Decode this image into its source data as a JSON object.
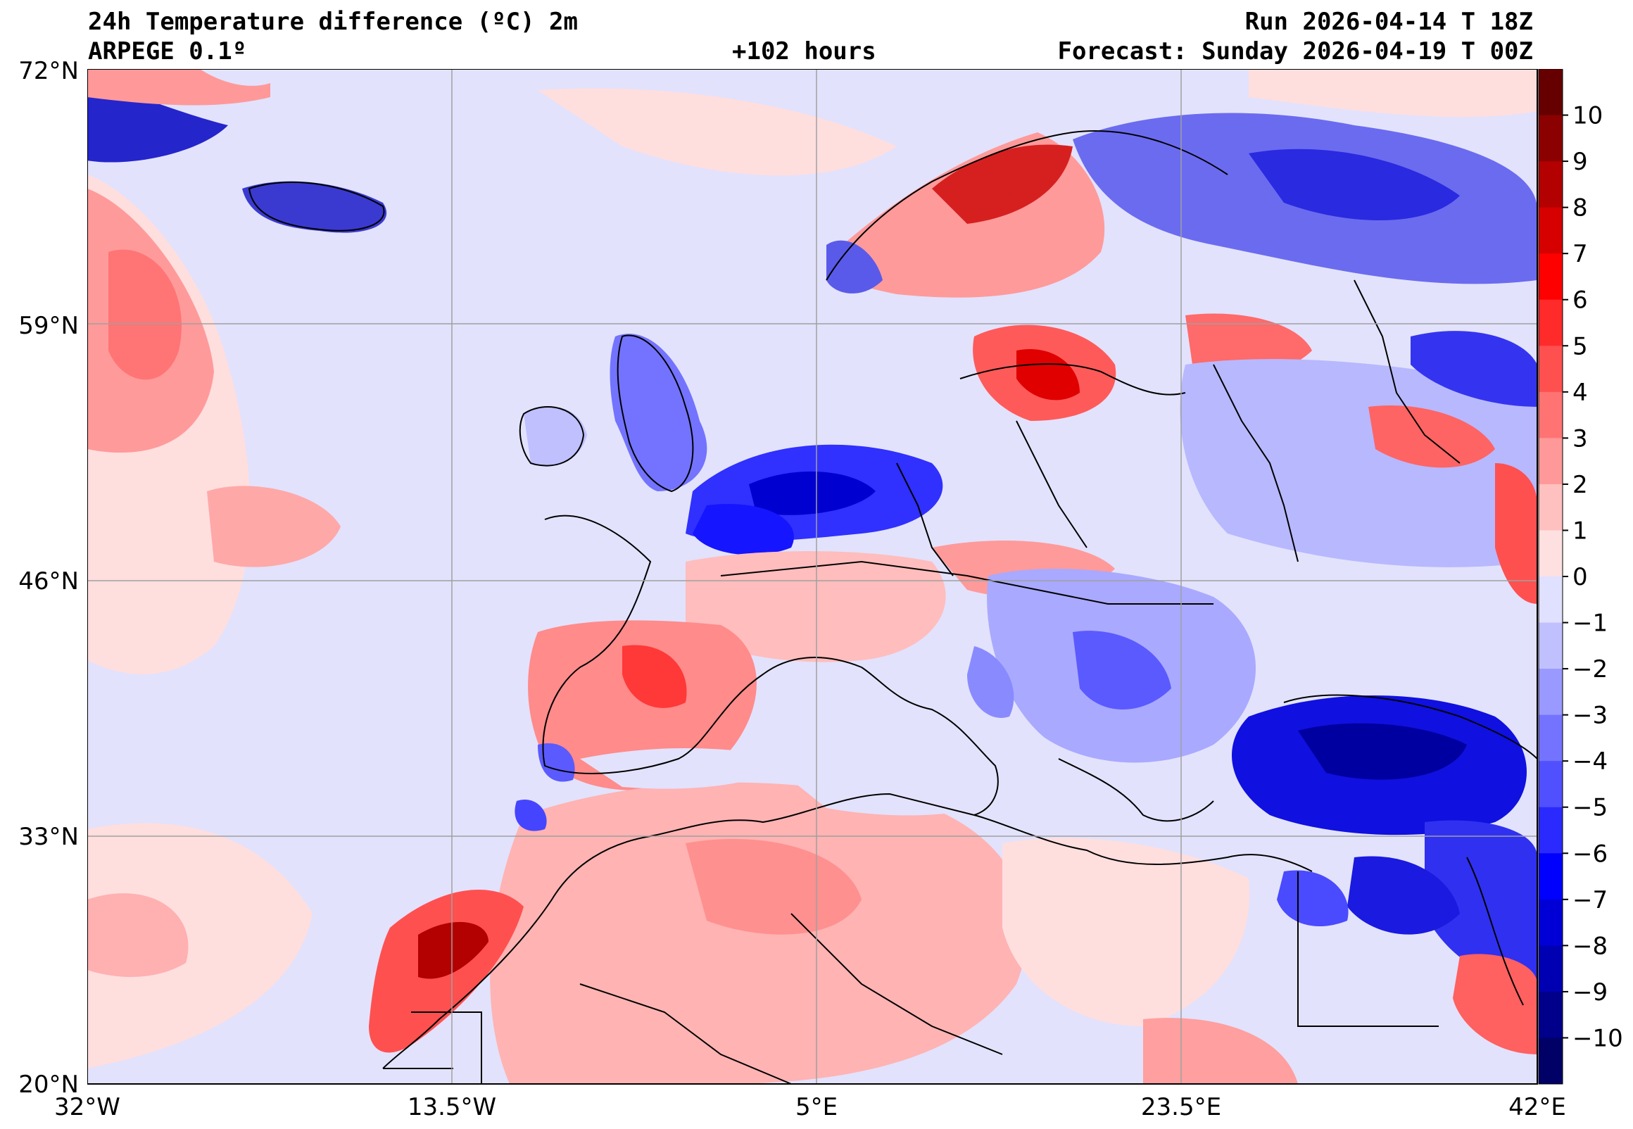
{
  "title": {
    "main": "24h Temperature difference (ºC) 2m",
    "model": "ARPEGE 0.1º",
    "lead": "+102 hours",
    "run": "Run 2026-04-14 T 18Z",
    "forecast": "Forecast: Sunday 2026-04-19 T 00Z"
  },
  "axes": {
    "lat_labels": [
      "72°N",
      "59°N",
      "46°N",
      "33°N",
      "20°N"
    ],
    "lon_labels": [
      "32°W",
      "13.5°W",
      "5°E",
      "23.5°E",
      "42°E"
    ]
  },
  "colorbar": {
    "ticks": [
      "10",
      "9",
      "8",
      "7",
      "6",
      "5",
      "4",
      "3",
      "2",
      "1",
      "0",
      "−1",
      "−2",
      "−3",
      "−4",
      "−5",
      "−6",
      "−7",
      "−8",
      "−9",
      "−10"
    ],
    "colors_warm": [
      "#660000",
      "#8b0000",
      "#b30000",
      "#d60000",
      "#ff0000",
      "#ff2a2a",
      "#ff5050",
      "#ff7373",
      "#ff9999",
      "#ffc0c0",
      "#ffe0e0"
    ],
    "colors_cold": [
      "#e0e0ff",
      "#c0c0ff",
      "#9999ff",
      "#7373ff",
      "#5050ff",
      "#2a2aff",
      "#0000ff",
      "#0000d6",
      "#0000b3",
      "#00008b",
      "#000066"
    ]
  },
  "colors": {
    "ocean_neutral": "#e2e2fc",
    "light_warm": "#ffdede",
    "border": "#000000",
    "grid": "#a0a0a0"
  }
}
